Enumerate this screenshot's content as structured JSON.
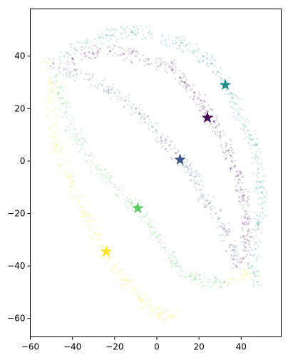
{
  "chart_data": {
    "type": "scatter",
    "title": "",
    "xlabel": "",
    "ylabel": "",
    "xlim": [
      -60,
      59
    ],
    "ylim": [
      -67,
      58
    ],
    "xticks": [
      -60,
      -40,
      -20,
      0,
      20,
      40
    ],
    "yticks": [
      -60,
      -40,
      -20,
      0,
      20,
      40
    ],
    "xtick_labels": [
      "−60",
      "−40",
      "−20",
      "0",
      "20",
      "40"
    ],
    "ytick_labels": [
      "−60",
      "−40",
      "−20",
      "0",
      "20",
      "40"
    ],
    "grid": false,
    "legend": "none",
    "series": [
      {
        "color": "#440154",
        "centroid": [
          24,
          16.5
        ],
        "points": [
          [
            -40,
            39
          ],
          [
            -34,
            41
          ],
          [
            -28,
            42
          ],
          [
            -22,
            42
          ],
          [
            -16,
            41
          ],
          [
            -10,
            40
          ],
          [
            -4,
            39
          ],
          [
            2,
            37
          ],
          [
            7,
            35
          ],
          [
            11,
            32
          ],
          [
            15,
            29
          ],
          [
            18,
            26
          ],
          [
            21,
            23
          ],
          [
            24,
            19
          ],
          [
            27,
            15
          ],
          [
            30,
            11
          ],
          [
            33,
            6
          ],
          [
            35,
            2
          ],
          [
            37,
            -2
          ],
          [
            39,
            -7
          ],
          [
            40,
            -11
          ],
          [
            41,
            -15
          ],
          [
            42,
            -19
          ],
          [
            43,
            -24
          ],
          [
            43,
            -28
          ],
          [
            42,
            -33
          ],
          [
            41,
            -37
          ],
          [
            -30,
            41
          ],
          [
            -12,
            41
          ],
          [
            6,
            36
          ],
          [
            13,
            30
          ],
          [
            22,
            21
          ],
          [
            28,
            13
          ],
          [
            34,
            4
          ],
          [
            38,
            -4
          ],
          [
            41,
            -13
          ],
          [
            43,
            -22
          ],
          [
            42,
            -31
          ]
        ]
      },
      {
        "color": "#3b528b",
        "centroid": [
          11,
          0.5
        ],
        "points": [
          [
            -49,
            37
          ],
          [
            -44,
            35
          ],
          [
            -38,
            33
          ],
          [
            -32,
            31
          ],
          [
            -26,
            29
          ],
          [
            -20,
            26
          ],
          [
            -15,
            23
          ],
          [
            -10,
            20
          ],
          [
            -6,
            16
          ],
          [
            -2,
            13
          ],
          [
            2,
            9
          ],
          [
            6,
            6
          ],
          [
            9,
            3
          ],
          [
            12,
            0
          ],
          [
            15,
            -3
          ],
          [
            18,
            -6
          ],
          [
            20,
            -9
          ],
          [
            22,
            -13
          ],
          [
            25,
            -16
          ],
          [
            28,
            -20
          ],
          [
            31,
            -24
          ],
          [
            33,
            -28
          ],
          [
            35,
            -32
          ],
          [
            37,
            -36
          ],
          [
            38,
            -40
          ],
          [
            -41,
            34
          ],
          [
            -23,
            27
          ],
          [
            -8,
            18
          ],
          [
            4,
            7
          ],
          [
            14,
            -2
          ],
          [
            24,
            -15
          ],
          [
            32,
            -26
          ],
          [
            36,
            -34
          ]
        ]
      },
      {
        "color": "#21918c",
        "centroid": [
          32.5,
          29
        ],
        "points": [
          [
            -44,
            40
          ],
          [
            -39,
            43
          ],
          [
            -33,
            45
          ],
          [
            -27,
            47
          ],
          [
            -21,
            48
          ],
          [
            -15,
            49
          ],
          [
            -9,
            49
          ],
          [
            -4,
            49
          ],
          [
            4,
            46
          ],
          [
            9,
            45
          ],
          [
            14,
            44
          ],
          [
            18,
            42
          ],
          [
            22,
            40
          ],
          [
            26,
            37
          ],
          [
            29,
            34
          ],
          [
            32,
            31
          ],
          [
            35,
            26
          ],
          [
            37,
            22
          ],
          [
            39,
            18
          ],
          [
            41,
            14
          ],
          [
            44,
            10
          ],
          [
            46,
            6
          ],
          [
            47,
            2
          ],
          [
            48,
            -3
          ],
          [
            49,
            -8
          ],
          [
            50,
            -12
          ],
          [
            50,
            -16
          ],
          [
            49,
            -21
          ],
          [
            48,
            -26
          ],
          [
            47,
            -31
          ],
          [
            46,
            -36
          ],
          [
            45,
            -40
          ],
          [
            46,
            -43
          ],
          [
            48,
            -46
          ],
          [
            -24,
            48
          ],
          [
            -12,
            49
          ],
          [
            12,
            45
          ],
          [
            24,
            39
          ],
          [
            36,
            24
          ],
          [
            45,
            8
          ],
          [
            49,
            -10
          ],
          [
            48,
            -24
          ]
        ]
      },
      {
        "color": "#5ec962",
        "centroid": [
          -9,
          -18
        ],
        "points": [
          [
            -48,
            32
          ],
          [
            -46,
            28
          ],
          [
            -45,
            24
          ],
          [
            -43,
            19
          ],
          [
            -41,
            14
          ],
          [
            -38,
            10
          ],
          [
            -35,
            6
          ],
          [
            -32,
            2
          ],
          [
            -29,
            -2
          ],
          [
            -26,
            -5
          ],
          [
            -22,
            -8
          ],
          [
            -18,
            -11
          ],
          [
            -14,
            -14
          ],
          [
            -10,
            -17
          ],
          [
            -6,
            -21
          ],
          [
            -3,
            -25
          ],
          [
            0,
            -29
          ],
          [
            3,
            -33
          ],
          [
            6,
            -37
          ],
          [
            9,
            -40
          ],
          [
            12,
            -42
          ],
          [
            16,
            -44
          ],
          [
            20,
            -45
          ],
          [
            24,
            -46
          ],
          [
            28,
            -46
          ],
          [
            32,
            -46
          ],
          [
            -44,
            22
          ],
          [
            -37,
            8
          ],
          [
            -24,
            -6
          ],
          [
            -12,
            -16
          ],
          [
            -1,
            -27
          ],
          [
            7,
            -38
          ],
          [
            18,
            -45
          ],
          [
            30,
            -46
          ]
        ]
      },
      {
        "color": "#fde725",
        "centroid": [
          -24,
          -34.5
        ],
        "points": [
          [
            -52,
            37
          ],
          [
            -51,
            30
          ],
          [
            -51,
            24
          ],
          [
            -50,
            19
          ],
          [
            -49,
            14
          ],
          [
            -48,
            9
          ],
          [
            -46,
            4
          ],
          [
            -44,
            -1
          ],
          [
            -42,
            -6
          ],
          [
            -40,
            -10
          ],
          [
            -37,
            -15
          ],
          [
            -35,
            -19
          ],
          [
            -32,
            -23
          ],
          [
            -30,
            -27
          ],
          [
            -28,
            -30
          ],
          [
            -26,
            -34
          ],
          [
            -23,
            -37
          ],
          [
            -20,
            -40
          ],
          [
            -17,
            -43
          ],
          [
            -14,
            -46
          ],
          [
            -11,
            -49
          ],
          [
            -8,
            -52
          ],
          [
            -5,
            -55
          ],
          [
            -2,
            -57
          ],
          [
            1,
            -58
          ],
          [
            5,
            -59
          ],
          [
            8,
            -59
          ],
          [
            36,
            -45
          ],
          [
            40,
            -44
          ],
          [
            43,
            -43
          ],
          [
            -50,
            27
          ],
          [
            -47,
            6
          ],
          [
            -41,
            -8
          ],
          [
            -33,
            -21
          ],
          [
            -25,
            -35
          ],
          [
            -15,
            -45
          ],
          [
            -6,
            -54
          ],
          [
            3,
            -58
          ]
        ]
      }
    ]
  }
}
